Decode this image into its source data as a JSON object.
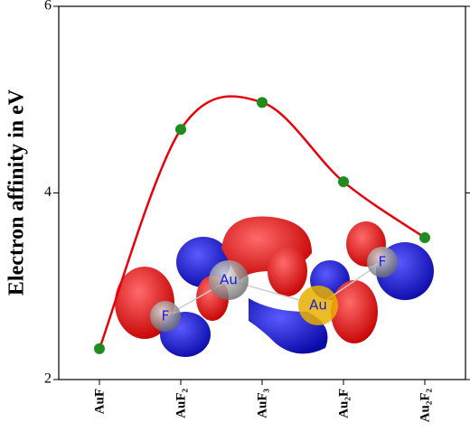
{
  "chart_data": {
    "type": "line",
    "y_label": "Electron affinity in eV",
    "categories": [
      "AuF",
      "AuF₂",
      "AuF₃",
      "Au₂F",
      "Au₂F₂"
    ],
    "series": [
      {
        "name": "Electron affinity",
        "color": "#e8000b",
        "marker_color": "#1e8c1e",
        "values": [
          2.33,
          4.68,
          4.97,
          4.12,
          3.52
        ]
      }
    ],
    "ylim": [
      2,
      6
    ],
    "yticks": [
      2,
      4,
      6
    ],
    "grid": false,
    "smooth": true,
    "inset_labels": [
      "F",
      "Au",
      "Au",
      "F"
    ]
  }
}
